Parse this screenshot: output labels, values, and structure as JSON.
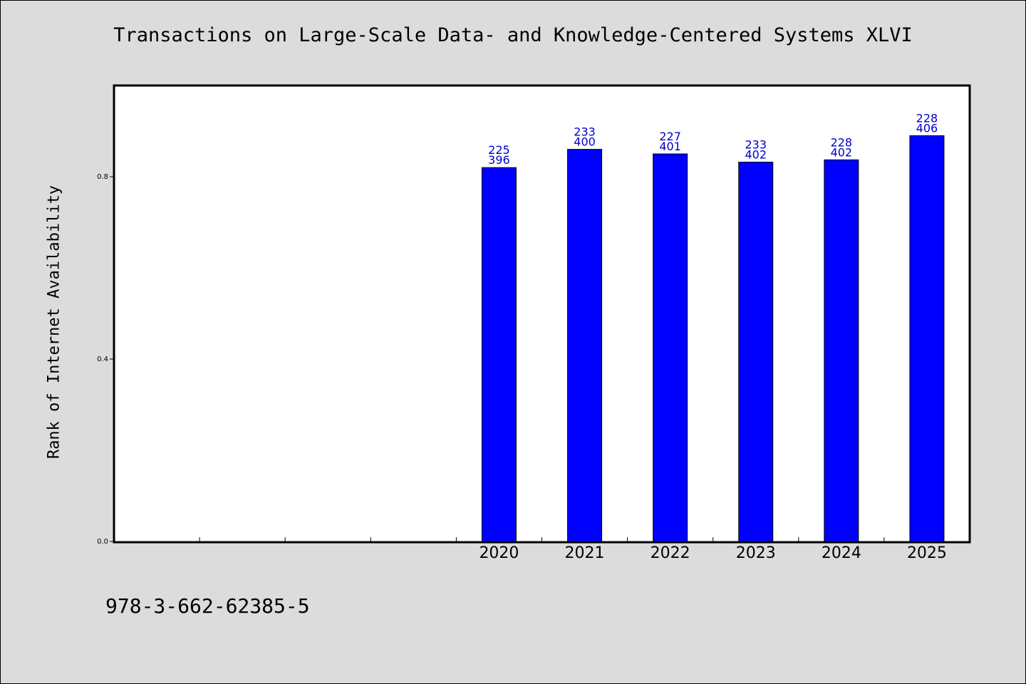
{
  "chart_data": {
    "type": "bar",
    "title": "Transactions on Large-Scale Data- and Knowledge-Centered Systems XLVI",
    "xlabel": "",
    "ylabel": "Rank of Internet Availability",
    "categories": [
      "",
      "",
      "",
      "",
      "2020",
      "2021",
      "2022",
      "2023",
      "2024",
      "2025"
    ],
    "values": [
      null,
      null,
      null,
      null,
      0.82,
      0.86,
      0.85,
      0.832,
      0.837,
      0.89
    ],
    "label_top": [
      "",
      "",
      "",
      "",
      "225",
      "233",
      "227",
      "233",
      "228",
      "228"
    ],
    "label_bottom": [
      "",
      "",
      "",
      "",
      "396",
      "400",
      "401",
      "402",
      "402",
      "406"
    ],
    "y_ticks": [
      "0.0",
      "0.4",
      "0.8"
    ],
    "y_tick_values": [
      0.0,
      0.4,
      0.8
    ],
    "ylim": [
      0,
      1.0
    ],
    "grid": false,
    "legend": "none",
    "colors": {
      "bar": "#0000ff",
      "label": "#0000cc",
      "plot_bg": "#ffffff",
      "page_bg": "#dcdcdc"
    }
  },
  "footer": {
    "isbn": "978-3-662-62385-5"
  }
}
